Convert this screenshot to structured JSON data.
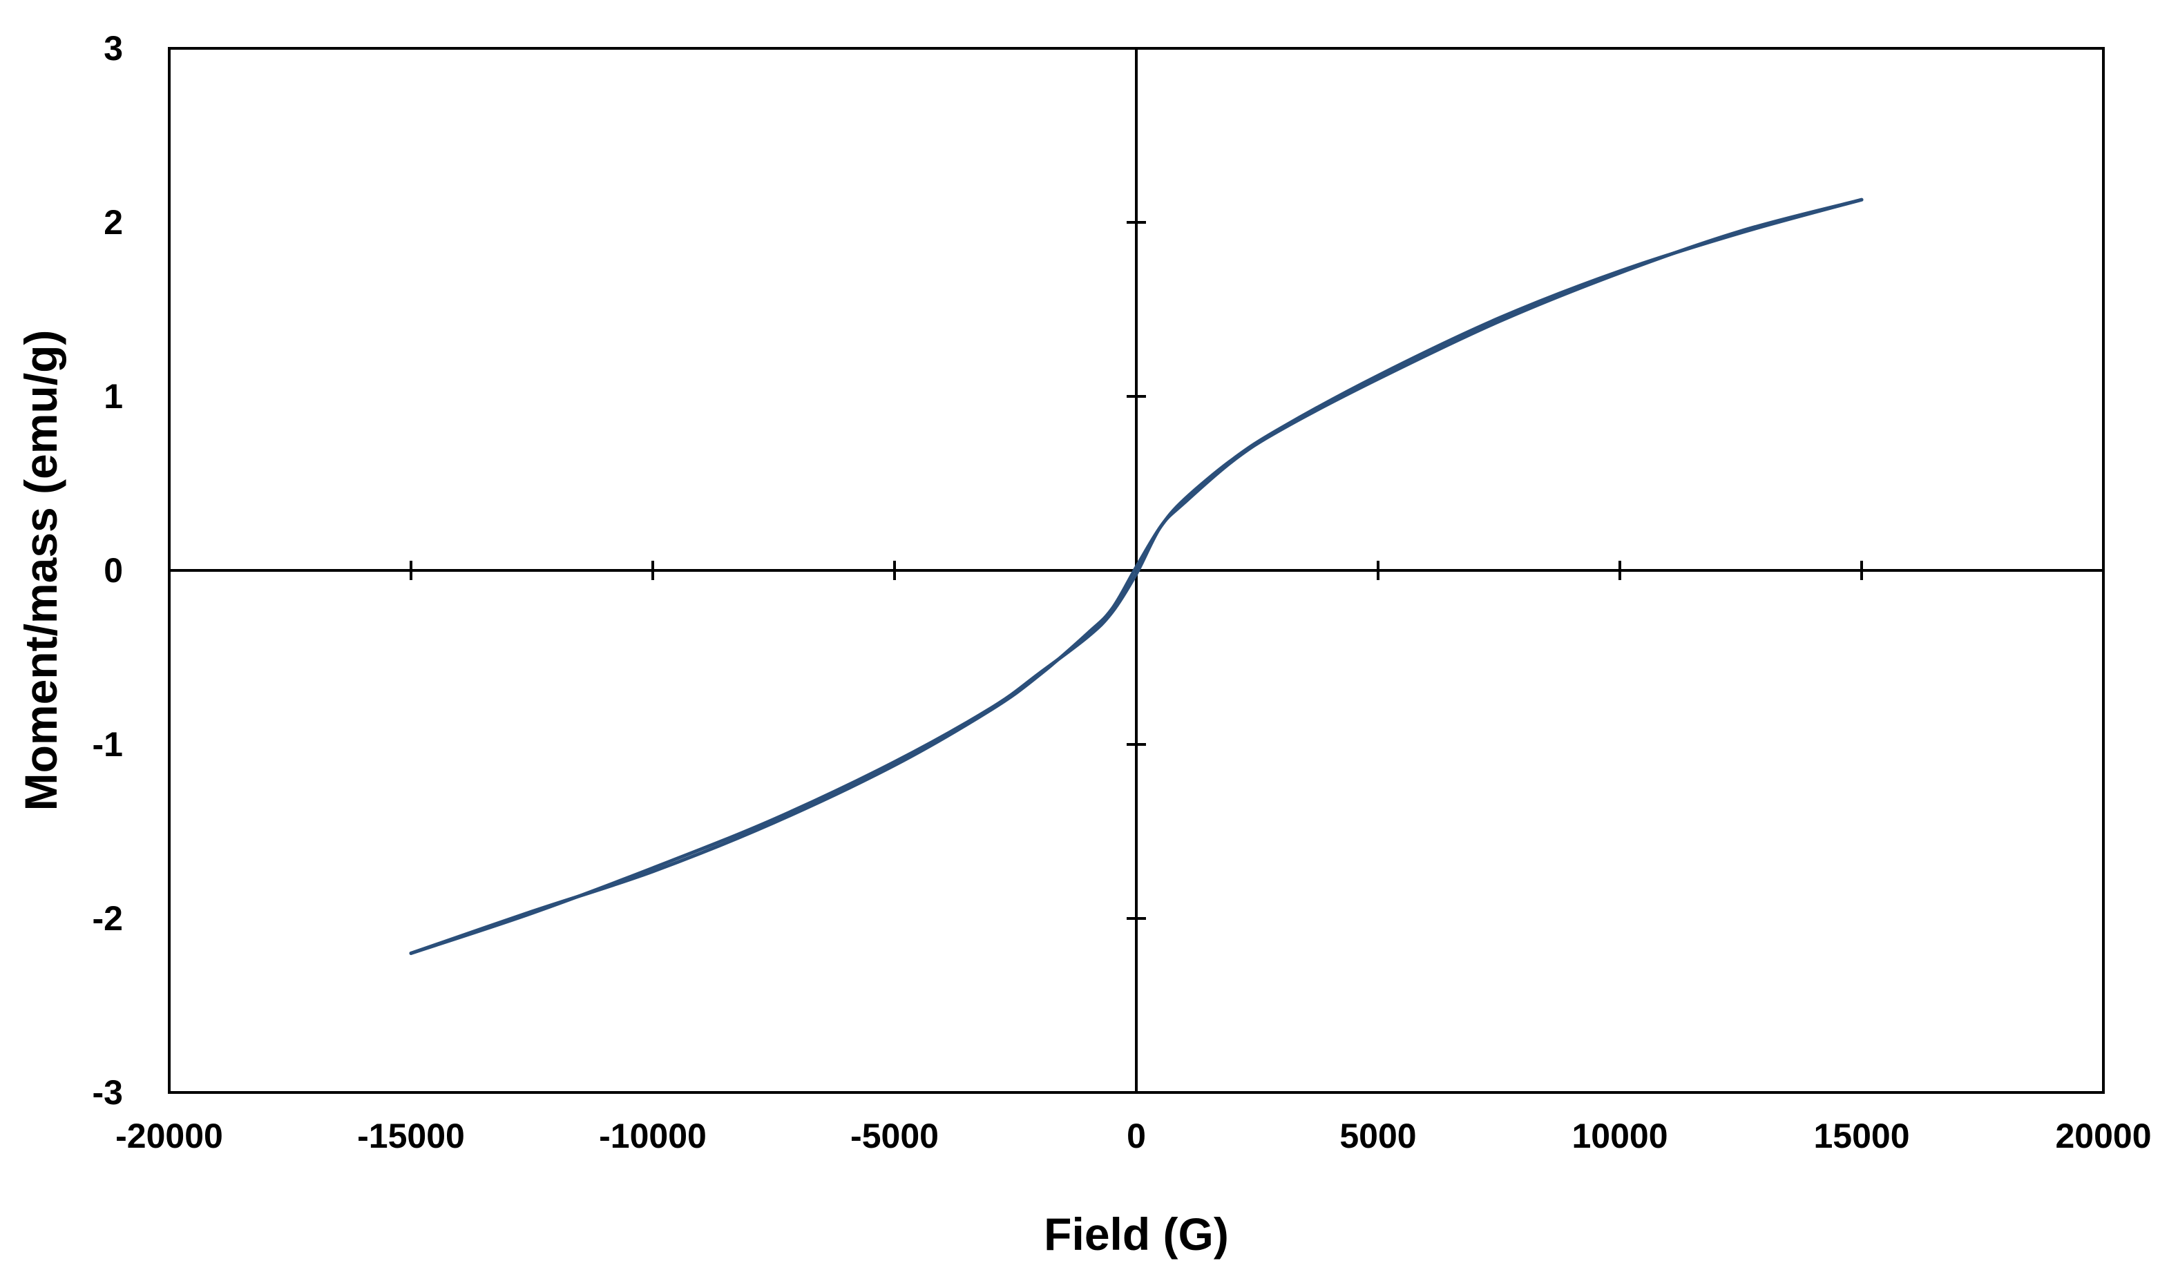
{
  "chart_data": {
    "type": "line",
    "title": "",
    "xlabel": "Field (G)",
    "ylabel": "Moment/mass (emu/g)",
    "xlim": [
      -20000,
      20000
    ],
    "ylim": [
      -3,
      3
    ],
    "x_ticks": [
      -20000,
      -15000,
      -10000,
      -5000,
      0,
      5000,
      10000,
      15000,
      20000
    ],
    "y_ticks": [
      -3,
      -2,
      -1,
      0,
      1,
      2,
      3
    ],
    "x_tick_labels": [
      "-20000",
      "-15000",
      "-10000",
      "-5000",
      "0",
      "5000",
      "10000",
      "15000",
      "20000"
    ],
    "y_tick_labels": [
      "-3",
      "-2",
      "-1",
      "0",
      "1",
      "2",
      "3"
    ],
    "grid": false,
    "legend": "none",
    "colors": {
      "series": "#2b4f7a",
      "axis": "#000000"
    },
    "series": [
      {
        "branch": "descending",
        "x": [
          15000,
          12500,
          10000,
          7500,
          5000,
          3000,
          2000,
          1000,
          500,
          0,
          -500,
          -1000,
          -2000,
          -3000,
          -5000,
          -7500,
          -10000,
          -12500,
          -15000
        ],
        "y": [
          2.13,
          1.94,
          1.72,
          1.45,
          1.12,
          0.82,
          0.64,
          0.41,
          0.25,
          0.02,
          -0.22,
          -0.36,
          -0.6,
          -0.8,
          -1.12,
          -1.45,
          -1.73,
          -1.96,
          -2.2
        ]
      },
      {
        "branch": "ascending",
        "x": [
          -15000,
          -12500,
          -10000,
          -7500,
          -5000,
          -3000,
          -2000,
          -1000,
          -500,
          0,
          500,
          1000,
          2000,
          3000,
          5000,
          7500,
          10000,
          12500,
          15000
        ],
        "y": [
          -2.2,
          -1.97,
          -1.71,
          -1.43,
          -1.1,
          -0.79,
          -0.59,
          -0.38,
          -0.24,
          -0.02,
          0.25,
          0.39,
          0.63,
          0.81,
          1.1,
          1.43,
          1.71,
          1.95,
          2.13
        ]
      }
    ]
  }
}
